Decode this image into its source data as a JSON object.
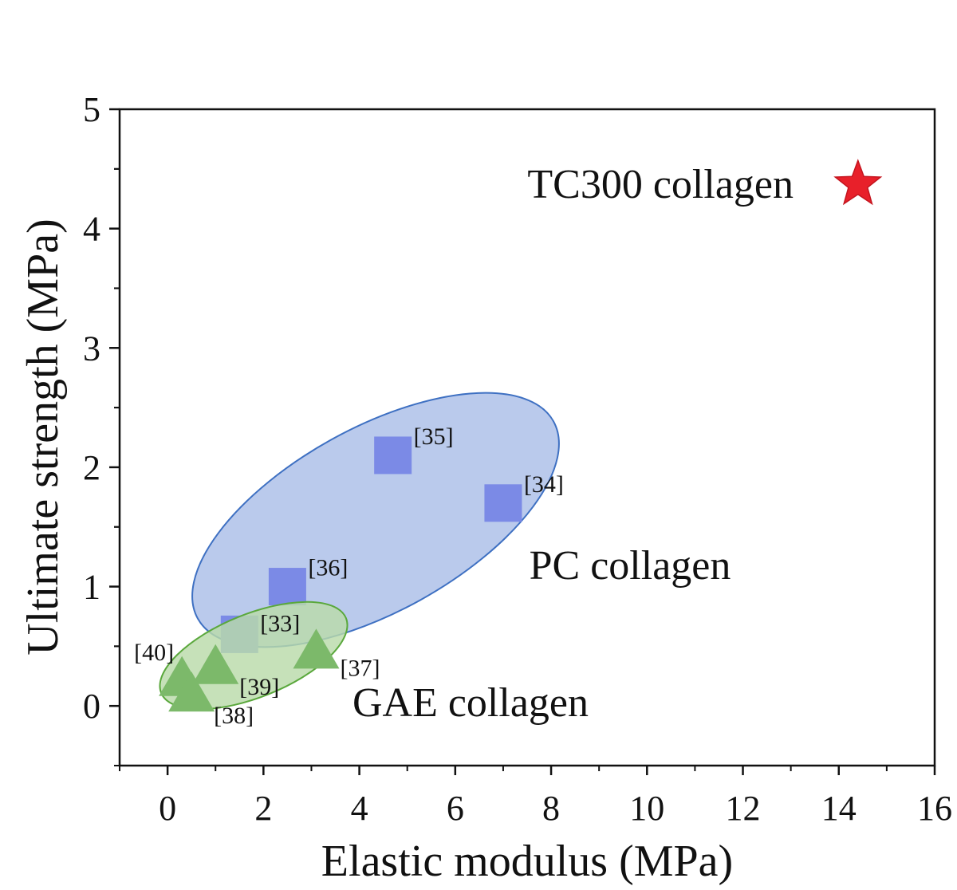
{
  "chart_data": {
    "type": "scatter",
    "xlabel": "Elastic modulus (MPa)",
    "ylabel": "Ultimate strength (MPa)",
    "xlim": [
      -1,
      16
    ],
    "ylim": [
      -0.5,
      5
    ],
    "x_ticks": [
      "0",
      "2",
      "4",
      "6",
      "8",
      "10",
      "12",
      "14",
      "16"
    ],
    "y_ticks": [
      "0",
      "1",
      "2",
      "3",
      "4",
      "5"
    ],
    "grid": false,
    "series": [
      {
        "name": "TC300 collagen",
        "marker": "star",
        "color": "#e8202a",
        "points": [
          {
            "x": 14.4,
            "y": 4.37,
            "label": ""
          }
        ]
      },
      {
        "name": "PC collagen",
        "marker": "square",
        "color": "#7b8ae6",
        "region_color": "#b4c6ea",
        "region_stroke": "#3e70c2",
        "points": [
          {
            "x": 4.7,
            "y": 2.1,
            "label": "[35]"
          },
          {
            "x": 7.0,
            "y": 1.7,
            "label": "[34]"
          },
          {
            "x": 2.5,
            "y": 1.0,
            "label": "[36]"
          },
          {
            "x": 1.5,
            "y": 0.6,
            "label": "[33]"
          }
        ]
      },
      {
        "name": "GAE collagen",
        "marker": "triangle",
        "color": "#7cb96a",
        "region_color": "#b9dba9",
        "region_stroke": "#5aa83c",
        "points": [
          {
            "x": 3.1,
            "y": 0.48,
            "label": "[37]"
          },
          {
            "x": 1.0,
            "y": 0.35,
            "label": "[39]"
          },
          {
            "x": 0.3,
            "y": 0.25,
            "label": "[40]"
          },
          {
            "x": 0.5,
            "y": 0.12,
            "label": "[38]"
          }
        ]
      }
    ]
  }
}
